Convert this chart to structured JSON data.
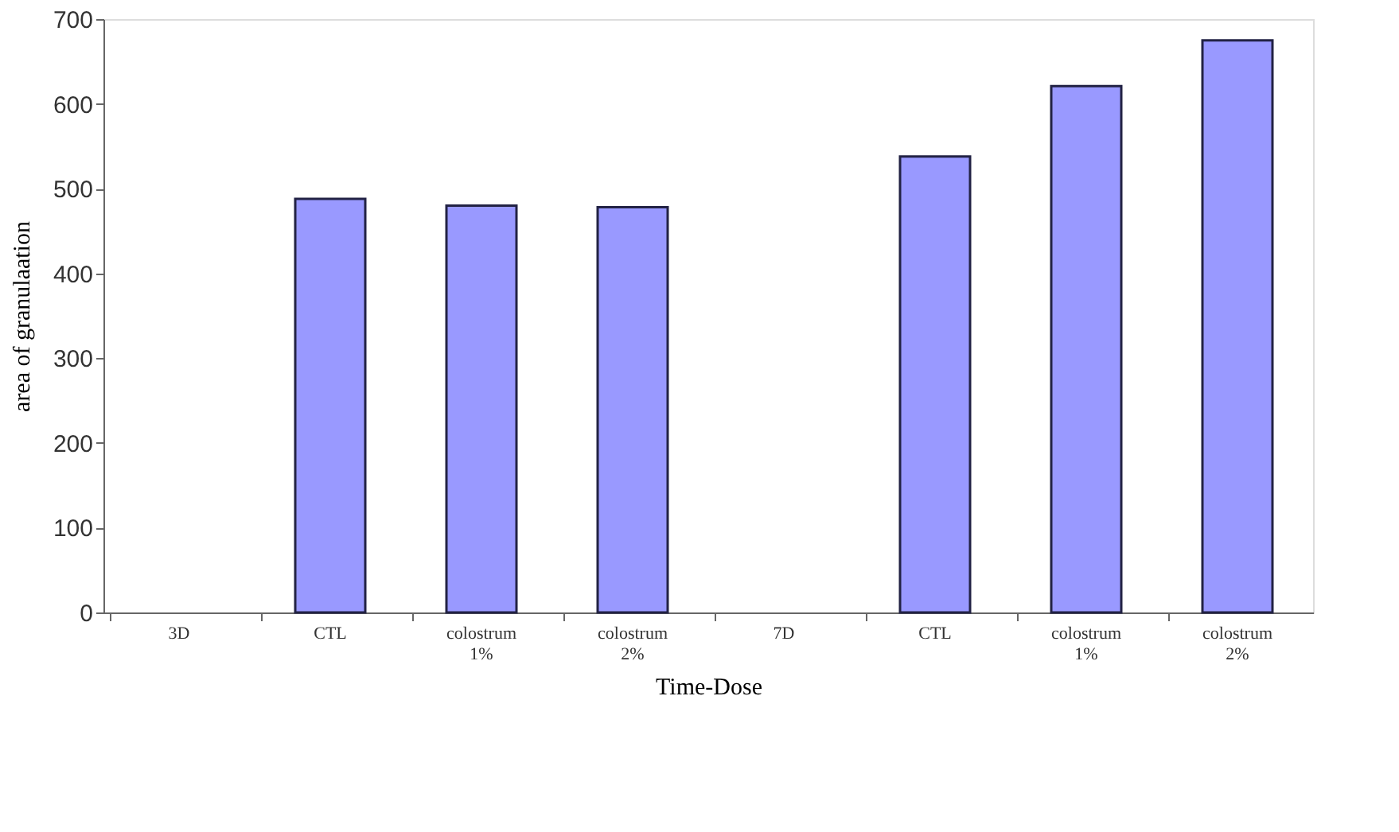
{
  "chart_data": {
    "type": "bar",
    "xlabel": "Time-Dose",
    "ylabel": "area of granulaation",
    "categories": [
      "3D",
      "CTL",
      "colostrum 1%",
      "colostrum 2%",
      "7D",
      "CTL",
      "colostrum 1%",
      "colostrum 2%"
    ],
    "values": [
      null,
      488,
      480,
      478,
      null,
      538,
      621,
      675
    ],
    "color": "#9999ff",
    "ylim": [
      0,
      700
    ],
    "yticks": [
      0,
      100,
      200,
      300,
      400,
      500,
      600,
      700
    ],
    "grid": false
  }
}
